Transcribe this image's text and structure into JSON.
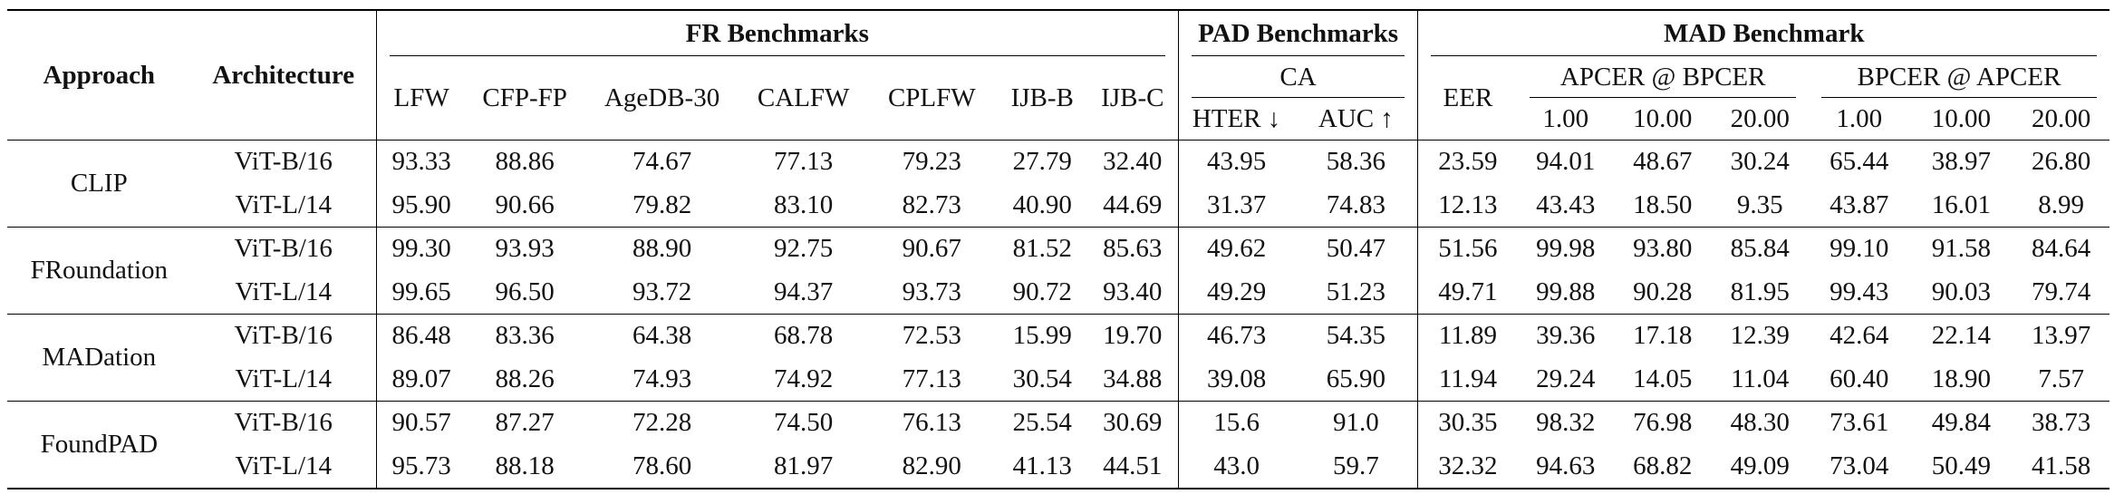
{
  "table": {
    "headers": {
      "approach": "Approach",
      "architecture": "Architecture",
      "fr_group": "FR Benchmarks",
      "pad_group": "PAD Benchmarks",
      "mad_group": "MAD Benchmark",
      "fr_cols": [
        "LFW",
        "CFP-FP",
        "AgeDB-30",
        "CALFW",
        "CPLFW",
        "IJB-B",
        "IJB-C"
      ],
      "pad_sub": "CA",
      "pad_cols": [
        "HTER ↓",
        "AUC ↑"
      ],
      "mad_eer": "EER",
      "mad_apcer_group": "APCER @ BPCER",
      "mad_bpcer_group": "BPCER @ APCER",
      "mad_thresholds": [
        "1.00",
        "10.00",
        "20.00",
        "1.00",
        "10.00",
        "20.00"
      ]
    },
    "groups": [
      {
        "approach": "CLIP",
        "rows": [
          {
            "arch": "ViT-B/16",
            "values": [
              "93.33",
              "88.86",
              "74.67",
              "77.13",
              "79.23",
              "27.79",
              "32.40",
              "43.95",
              "58.36",
              "23.59",
              "94.01",
              "48.67",
              "30.24",
              "65.44",
              "38.97",
              "26.80"
            ]
          },
          {
            "arch": "ViT-L/14",
            "values": [
              "95.90",
              "90.66",
              "79.82",
              "83.10",
              "82.73",
              "40.90",
              "44.69",
              "31.37",
              "74.83",
              "12.13",
              "43.43",
              "18.50",
              "9.35",
              "43.87",
              "16.01",
              "8.99"
            ]
          }
        ]
      },
      {
        "approach": "FRoundation",
        "rows": [
          {
            "arch": "ViT-B/16",
            "values": [
              "99.30",
              "93.93",
              "88.90",
              "92.75",
              "90.67",
              "81.52",
              "85.63",
              "49.62",
              "50.47",
              "51.56",
              "99.98",
              "93.80",
              "85.84",
              "99.10",
              "91.58",
              "84.64"
            ]
          },
          {
            "arch": "ViT-L/14",
            "values": [
              "99.65",
              "96.50",
              "93.72",
              "94.37",
              "93.73",
              "90.72",
              "93.40",
              "49.29",
              "51.23",
              "49.71",
              "99.88",
              "90.28",
              "81.95",
              "99.43",
              "90.03",
              "79.74"
            ]
          }
        ]
      },
      {
        "approach": "MADation",
        "rows": [
          {
            "arch": "ViT-B/16",
            "values": [
              "86.48",
              "83.36",
              "64.38",
              "68.78",
              "72.53",
              "15.99",
              "19.70",
              "46.73",
              "54.35",
              "11.89",
              "39.36",
              "17.18",
              "12.39",
              "42.64",
              "22.14",
              "13.97"
            ]
          },
          {
            "arch": "ViT-L/14",
            "values": [
              "89.07",
              "88.26",
              "74.93",
              "74.92",
              "77.13",
              "30.54",
              "34.88",
              "39.08",
              "65.90",
              "11.94",
              "29.24",
              "14.05",
              "11.04",
              "60.40",
              "18.90",
              "7.57"
            ]
          }
        ]
      },
      {
        "approach": "FoundPAD",
        "rows": [
          {
            "arch": "ViT-B/16",
            "values": [
              "90.57",
              "87.27",
              "72.28",
              "74.50",
              "76.13",
              "25.54",
              "30.69",
              "15.6",
              "91.0",
              "30.35",
              "98.32",
              "76.98",
              "48.30",
              "73.61",
              "49.84",
              "38.73"
            ]
          },
          {
            "arch": "ViT-L/14",
            "values": [
              "95.73",
              "88.18",
              "78.60",
              "81.97",
              "82.90",
              "41.13",
              "44.51",
              "43.0",
              "59.7",
              "32.32",
              "94.63",
              "68.82",
              "49.09",
              "73.04",
              "50.49",
              "41.58"
            ]
          }
        ]
      }
    ]
  }
}
